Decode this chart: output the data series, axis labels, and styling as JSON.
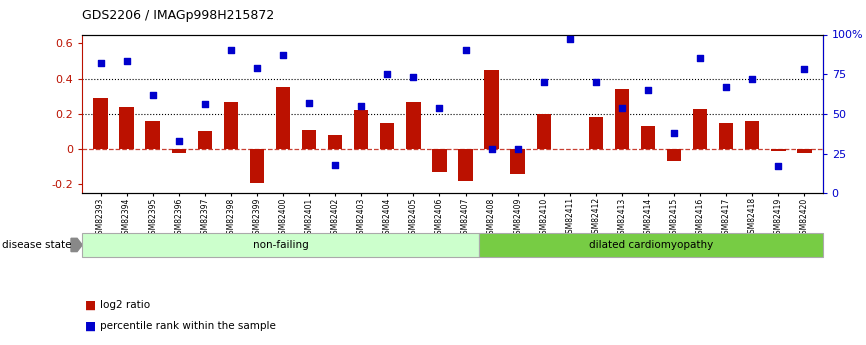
{
  "title": "GDS2206 / IMAGp998H215872",
  "samples": [
    "GSM82393",
    "GSM82394",
    "GSM82395",
    "GSM82396",
    "GSM82397",
    "GSM82398",
    "GSM82399",
    "GSM82400",
    "GSM82401",
    "GSM82402",
    "GSM82403",
    "GSM82404",
    "GSM82405",
    "GSM82406",
    "GSM82407",
    "GSM82408",
    "GSM82409",
    "GSM82410",
    "GSM82411",
    "GSM82412",
    "GSM82413",
    "GSM82414",
    "GSM82415",
    "GSM82416",
    "GSM82417",
    "GSM82418",
    "GSM82419",
    "GSM82420"
  ],
  "log2_ratio": [
    0.29,
    0.24,
    0.16,
    -0.02,
    0.1,
    0.27,
    -0.19,
    0.35,
    0.11,
    0.08,
    0.22,
    0.15,
    0.27,
    -0.13,
    -0.18,
    0.45,
    -0.14,
    0.2,
    0.0,
    0.18,
    0.34,
    0.13,
    -0.07,
    0.23,
    0.15,
    0.16,
    -0.01,
    -0.02
  ],
  "percentile": [
    82,
    83,
    62,
    33,
    56,
    90,
    79,
    87,
    57,
    18,
    55,
    75,
    73,
    54,
    90,
    28,
    28,
    70,
    97,
    70,
    54,
    65,
    38,
    85,
    67,
    72,
    17,
    78
  ],
  "non_failing_count": 15,
  "ylim_left": [
    -0.25,
    0.65
  ],
  "ylim_right": [
    0,
    100
  ],
  "yticks_left": [
    -0.2,
    0.0,
    0.2,
    0.4,
    0.6
  ],
  "ytick_labels_left": [
    "-0.2",
    "0",
    "0.2",
    "0.4",
    "0.6"
  ],
  "yticks_right": [
    0,
    25,
    50,
    75,
    100
  ],
  "ytick_labels_right": [
    "0",
    "25",
    "50",
    "75",
    "100%"
  ],
  "hlines": [
    0.2,
    0.4
  ],
  "bar_color": "#bb1100",
  "scatter_color": "#0000cc",
  "nonfailing_color": "#ccffcc",
  "dilated_color": "#77cc44",
  "label_log2": "log2 ratio",
  "label_percentile": "percentile rank within the sample"
}
